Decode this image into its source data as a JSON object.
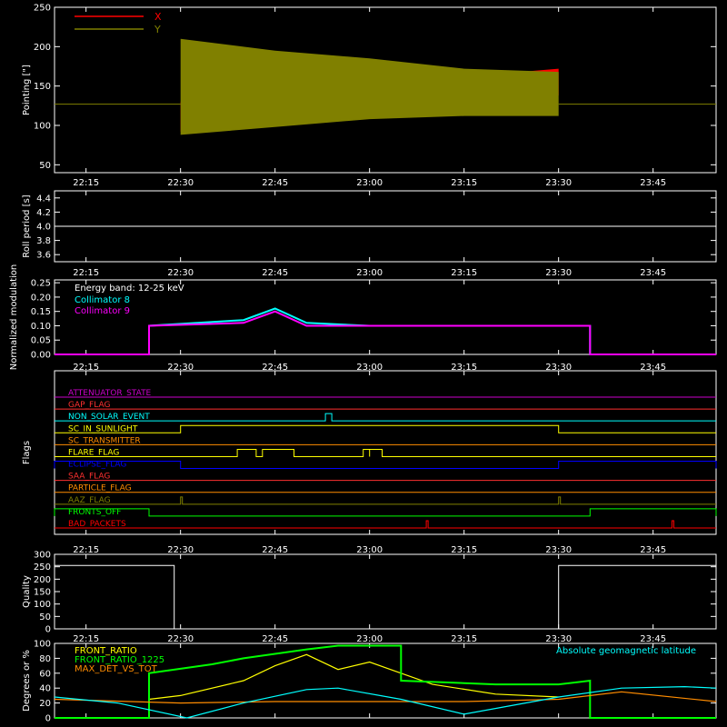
{
  "chart_data": [
    {
      "type": "line",
      "id": "pointing",
      "ylabel": "Pointing [\"]",
      "ylim": [
        40,
        250
      ],
      "yticks": [
        50,
        100,
        150,
        200,
        250
      ],
      "xlim_minutes": [
        "22:10",
        "23:55"
      ],
      "xticks": [
        "22:15",
        "22:30",
        "22:45",
        "23:00",
        "23:15",
        "23:30",
        "23:45"
      ],
      "legend": [
        {
          "name": "X",
          "color": "#ff0000"
        },
        {
          "name": "Y",
          "color": "#808000"
        }
      ],
      "series": [
        {
          "name": "X",
          "color": "#ff0000",
          "segments": [
            {
              "x": [
                "22:10",
                "22:30"
              ],
              "y": [
                127,
                127
              ]
            },
            {
              "x": [
                "23:30",
                "23:55"
              ],
              "y": [
                127,
                127
              ]
            }
          ],
          "envelope": {
            "x": [
              "22:30",
              "22:45",
              "23:00",
              "23:15",
              "23:30"
            ],
            "upper": [
              130,
              138,
              148,
              162,
              172
            ],
            "lower": [
              92,
              108,
              112,
              128,
              138
            ]
          }
        },
        {
          "name": "Y",
          "color": "#808000",
          "envelope": {
            "x": [
              "22:30",
              "22:45",
              "23:00",
              "23:15",
              "23:30"
            ],
            "upper": [
              210,
              195,
              185,
              172,
              168
            ],
            "lower": [
              88,
              98,
              108,
              112,
              112
            ]
          }
        }
      ]
    },
    {
      "type": "line",
      "id": "roll",
      "ylabel": "Roll period [s]",
      "ylim": [
        3.5,
        4.5
      ],
      "yticks": [
        3.6,
        3.8,
        4.0,
        4.2,
        4.4
      ],
      "series": [
        {
          "name": "",
          "color": "#ffffff",
          "x": [
            "22:10",
            "23:55"
          ],
          "y": [
            4.0,
            4.0
          ]
        }
      ]
    },
    {
      "type": "line",
      "id": "modulation",
      "ylabel": "Normalized modulation",
      "ylim": [
        0,
        0.26
      ],
      "yticks": [
        0.0,
        0.05,
        0.1,
        0.15,
        0.2,
        0.25
      ],
      "annotation": "Energy band: 12-25 keV",
      "legend": [
        {
          "name": "Collimator 8",
          "color": "#00ffff"
        },
        {
          "name": "Collimator 9",
          "color": "#ff00ff"
        }
      ],
      "series": [
        {
          "name": "Collimator 8",
          "color": "#00ffff",
          "x": [
            "22:10",
            "22:25",
            "22:25",
            "22:40",
            "22:45",
            "22:50",
            "23:00",
            "23:15",
            "23:30",
            "23:35",
            "23:35",
            "23:55"
          ],
          "y": [
            0,
            0,
            0.1,
            0.12,
            0.16,
            0.11,
            0.1,
            0.1,
            0.1,
            0.1,
            0,
            0
          ]
        },
        {
          "name": "Collimator 9",
          "color": "#ff00ff",
          "x": [
            "22:10",
            "22:25",
            "22:25",
            "22:40",
            "22:45",
            "22:50",
            "23:00",
            "23:15",
            "23:30",
            "23:35",
            "23:35",
            "23:55"
          ],
          "y": [
            0,
            0,
            0.1,
            0.11,
            0.15,
            0.1,
            0.1,
            0.1,
            0.1,
            0.1,
            0,
            0
          ]
        }
      ]
    },
    {
      "type": "line",
      "id": "flags",
      "ylabel": "Flags",
      "flags": [
        {
          "name": "ATTENUATOR_STATE",
          "color": "#cc00cc",
          "on": []
        },
        {
          "name": "GAP_FLAG",
          "color": "#ff3030",
          "on": []
        },
        {
          "name": "NON_SOLAR_EVENT",
          "color": "#00ffff",
          "on": [
            [
              "22:53",
              "22:54"
            ]
          ]
        },
        {
          "name": "SC_IN_SUNLIGHT",
          "color": "#ffff00",
          "on": [
            [
              "22:30",
              "23:30"
            ]
          ]
        },
        {
          "name": "SC_TRANSMITTER",
          "color": "#ff8c00",
          "on": []
        },
        {
          "name": "FLARE_FLAG",
          "color": "#ffff00",
          "on": [
            [
              "22:39",
              "22:42"
            ],
            [
              "22:43",
              "22:48"
            ],
            [
              "22:59",
              "23:00"
            ],
            [
              "23:00",
              "23:02"
            ]
          ]
        },
        {
          "name": "ECLIPSE_FLAG",
          "color": "#0000ff",
          "on": [
            [
              "22:10",
              "22:30"
            ],
            [
              "23:30",
              "23:55"
            ]
          ]
        },
        {
          "name": "SAA_FLAG",
          "color": "#ff3030",
          "on": []
        },
        {
          "name": "PARTICLE_FLAG",
          "color": "#ff8c00",
          "on": []
        },
        {
          "name": "AAZ_FLAG",
          "color": "#808000",
          "on": [
            [
              "22:30",
              "22:30"
            ],
            [
              "23:30",
              "23:30"
            ]
          ]
        },
        {
          "name": "FRONTS_OFF",
          "color": "#00ff00",
          "on": [
            [
              "22:10",
              "22:25"
            ],
            [
              "23:35",
              "23:55"
            ]
          ]
        },
        {
          "name": "BAD_PACKETS",
          "color": "#ff0000",
          "on": [
            [
              "23:09",
              "23:09"
            ],
            [
              "23:48",
              "23:48"
            ]
          ]
        }
      ]
    },
    {
      "type": "line",
      "id": "quality",
      "ylabel": "Quality",
      "ylim": [
        0,
        300
      ],
      "yticks": [
        0,
        50,
        100,
        150,
        200,
        250,
        300
      ],
      "series": [
        {
          "name": "",
          "color": "#ffffff",
          "x": [
            "22:10",
            "22:29",
            "22:29",
            "23:30",
            "23:30",
            "23:55"
          ],
          "y": [
            255,
            255,
            0,
            0,
            255,
            255
          ]
        }
      ]
    },
    {
      "type": "line",
      "id": "ratios",
      "ylabel": "Degrees or %",
      "ylim": [
        0,
        100
      ],
      "yticks": [
        0,
        20,
        40,
        60,
        80,
        100
      ],
      "legend": [
        {
          "name": "FRONT_RATIO",
          "color": "#ffff00"
        },
        {
          "name": "FRONT_RATIO_1225",
          "color": "#00ff00"
        },
        {
          "name": "MAX_DET_VS_TOT",
          "color": "#ff8c00"
        },
        {
          "name": "Absolute geomagnetic latitude",
          "color": "#00ffff"
        }
      ],
      "series": [
        {
          "name": "FRONT_RATIO",
          "color": "#ffff00",
          "x": [
            "22:25",
            "22:30",
            "22:40",
            "22:45",
            "22:50",
            "22:55",
            "23:00",
            "23:05",
            "23:10",
            "23:20",
            "23:30"
          ],
          "y": [
            25,
            30,
            50,
            70,
            85,
            65,
            75,
            60,
            45,
            32,
            28
          ]
        },
        {
          "name": "FRONT_RATIO_1225",
          "color": "#00ff00",
          "x": [
            "22:10",
            "22:25",
            "22:25",
            "22:35",
            "22:40",
            "22:50",
            "22:55",
            "23:05",
            "23:05",
            "23:20",
            "23:30",
            "23:35",
            "23:35",
            "23:55"
          ],
          "y": [
            0,
            0,
            60,
            72,
            80,
            92,
            97,
            97,
            50,
            45,
            45,
            50,
            0,
            0
          ]
        },
        {
          "name": "MAX_DET_VS_TOT",
          "color": "#ff8c00",
          "x": [
            "22:10",
            "22:30",
            "22:45",
            "23:00",
            "23:15",
            "23:30",
            "23:40",
            "23:55"
          ],
          "y": [
            25,
            20,
            22,
            22,
            22,
            25,
            35,
            22
          ]
        },
        {
          "name": "Absolute geomagnetic latitude",
          "color": "#00ffff",
          "x": [
            "22:10",
            "22:20",
            "22:31",
            "22:40",
            "22:50",
            "22:55",
            "23:05",
            "23:15",
            "23:30",
            "23:40",
            "23:50",
            "23:55"
          ],
          "y": [
            28,
            20,
            0,
            20,
            38,
            40,
            25,
            5,
            28,
            40,
            42,
            40
          ]
        }
      ]
    }
  ]
}
